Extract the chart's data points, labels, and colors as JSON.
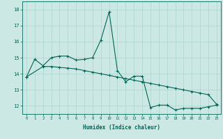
{
  "xlabel": "Humidex (Indice chaleur)",
  "ylabel": "",
  "bg_color": "#cce8e4",
  "grid_color": "#b0d8d0",
  "line_color": "#006655",
  "xlim": [
    -0.5,
    23.5
  ],
  "ylim": [
    11.5,
    18.5
  ],
  "xticks": [
    0,
    1,
    2,
    3,
    4,
    5,
    6,
    7,
    8,
    9,
    10,
    11,
    12,
    13,
    14,
    15,
    16,
    17,
    18,
    19,
    20,
    21,
    22,
    23
  ],
  "yticks": [
    12,
    13,
    14,
    15,
    16,
    17,
    18
  ],
  "curve1_x": [
    0,
    1,
    2,
    3,
    4,
    5,
    6,
    7,
    8,
    9,
    10,
    11,
    12,
    13,
    14,
    15,
    16,
    17,
    18,
    19,
    20,
    21,
    22,
    23
  ],
  "curve1_y": [
    13.8,
    14.9,
    14.5,
    15.0,
    15.1,
    15.1,
    14.85,
    14.9,
    15.0,
    16.1,
    17.85,
    14.2,
    13.5,
    13.85,
    13.85,
    11.9,
    12.05,
    12.05,
    11.75,
    11.85,
    11.85,
    11.85,
    11.95,
    12.05
  ],
  "curve2_x": [
    0,
    2,
    3,
    4,
    5,
    6,
    7,
    8,
    9,
    10,
    11,
    12,
    13,
    14,
    15,
    16,
    17,
    18,
    19,
    20,
    21,
    22,
    23
  ],
  "curve2_y": [
    13.8,
    14.45,
    14.45,
    14.4,
    14.35,
    14.3,
    14.2,
    14.1,
    14.0,
    13.9,
    13.8,
    13.7,
    13.6,
    13.5,
    13.4,
    13.3,
    13.2,
    13.1,
    13.0,
    12.9,
    12.8,
    12.7,
    12.1
  ]
}
